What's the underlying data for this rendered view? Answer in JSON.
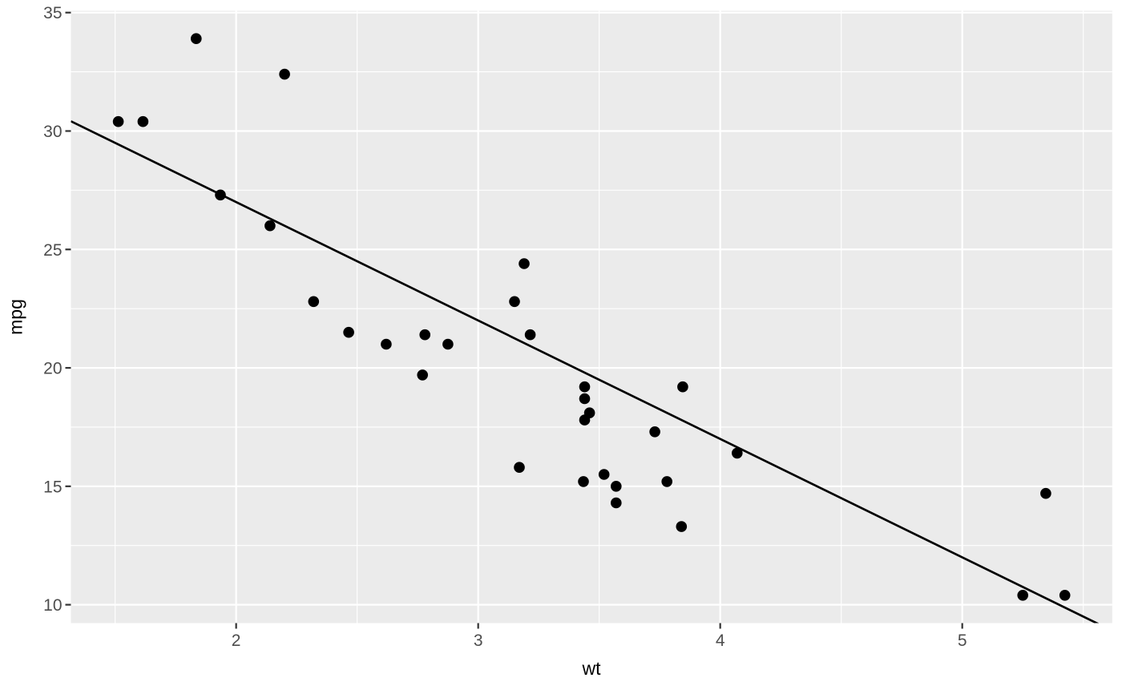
{
  "figure": {
    "background": "#FFFFFF",
    "title": "",
    "legend": "none"
  },
  "chart_data": {
    "type": "scatter",
    "title": "",
    "xlabel": "wt",
    "ylabel": "mpg",
    "x_ticks": [
      2,
      3,
      4,
      5
    ],
    "x_tick_labels": [
      "2",
      "3",
      "4",
      "5"
    ],
    "y_ticks": [
      10,
      15,
      20,
      25,
      30,
      35
    ],
    "y_tick_labels": [
      "10",
      "15",
      "20",
      "25",
      "30",
      "35"
    ],
    "x_domain": [
      1.3174,
      5.6196
    ],
    "y_domain": [
      9.225,
      35.075
    ],
    "x_minor_step": 0.5,
    "y_minor_step": 2.5,
    "grid": "major+minor",
    "legend_position": "none",
    "points": [
      [
        2.62,
        21.0
      ],
      [
        2.875,
        21.0
      ],
      [
        2.32,
        22.8
      ],
      [
        3.215,
        21.4
      ],
      [
        3.44,
        18.7
      ],
      [
        3.46,
        18.1
      ],
      [
        3.57,
        14.3
      ],
      [
        3.19,
        24.4
      ],
      [
        3.15,
        22.8
      ],
      [
        3.44,
        19.2
      ],
      [
        3.44,
        17.8
      ],
      [
        4.07,
        16.4
      ],
      [
        3.73,
        17.3
      ],
      [
        3.78,
        15.2
      ],
      [
        5.25,
        10.4
      ],
      [
        5.424,
        10.4
      ],
      [
        5.345,
        14.7
      ],
      [
        2.2,
        32.4
      ],
      [
        1.615,
        30.4
      ],
      [
        1.835,
        33.9
      ],
      [
        2.465,
        21.5
      ],
      [
        3.52,
        15.5
      ],
      [
        3.435,
        15.2
      ],
      [
        3.84,
        13.3
      ],
      [
        3.845,
        19.2
      ],
      [
        1.935,
        27.3
      ],
      [
        2.14,
        26.0
      ],
      [
        1.513,
        30.4
      ],
      [
        3.17,
        15.8
      ],
      [
        2.77,
        19.7
      ],
      [
        3.57,
        15.0
      ],
      [
        2.78,
        21.4
      ]
    ],
    "trend_line": {
      "type": "abline",
      "intercept": 37,
      "slope": -5
    },
    "colors": {
      "background": "#FFFFFF",
      "panel_background": "#EBEBEB",
      "grid_major": "#FFFFFF",
      "grid_minor": "#FFFFFF",
      "point": "#000000",
      "line": "#000000",
      "tick_mark": "#333333",
      "tick_label": "#4D4D4D",
      "axis_title": "#000000"
    }
  }
}
